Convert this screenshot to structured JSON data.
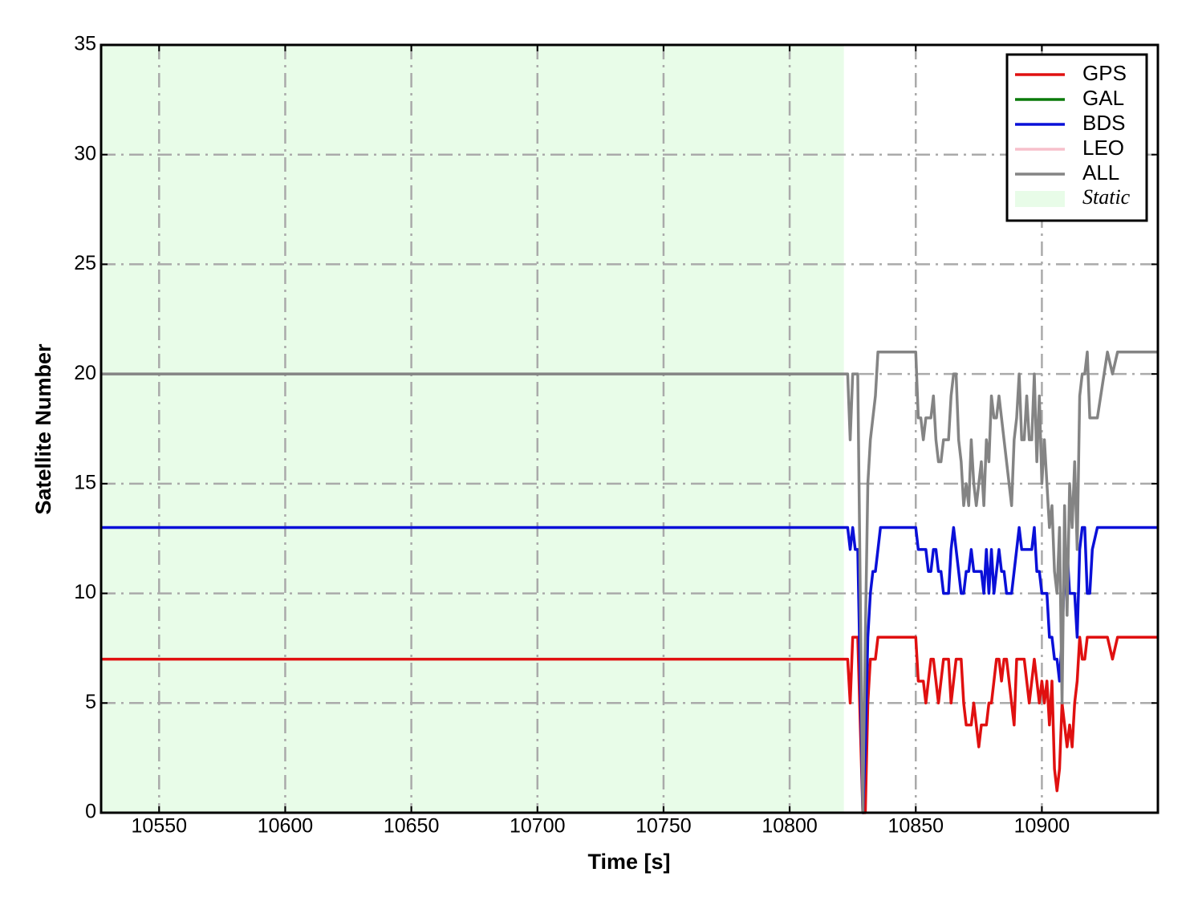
{
  "chart_data": {
    "type": "line",
    "xlabel": "Time [s]",
    "ylabel": "Satellite Number",
    "x": [
      10527,
      10821,
      10823,
      10824,
      10825,
      10826,
      10827,
      10828,
      10829,
      10830,
      10831,
      10832,
      10833,
      10834,
      10835,
      10836,
      10850,
      10851,
      10852,
      10853,
      10854,
      10855,
      10856,
      10857,
      10858,
      10859,
      10860,
      10861,
      10862,
      10863,
      10864,
      10865,
      10866,
      10867,
      10868,
      10869,
      10870,
      10871,
      10872,
      10873,
      10874,
      10875,
      10876,
      10877,
      10878,
      10879,
      10880,
      10881,
      10882,
      10883,
      10884,
      10885,
      10886,
      10887,
      10888,
      10889,
      10890,
      10891,
      10892,
      10893,
      10894,
      10895,
      10896,
      10897,
      10898,
      10899,
      10900,
      10901,
      10902,
      10903,
      10904,
      10905,
      10906,
      10907,
      10908,
      10909,
      10910,
      10911,
      10912,
      10913,
      10914,
      10915,
      10916,
      10917,
      10918,
      10919,
      10920,
      10922,
      10926,
      10928,
      10930,
      10946
    ],
    "series": [
      {
        "name": "GPS",
        "color": "#e01010",
        "values": [
          7,
          7,
          7,
          5,
          8,
          8,
          8,
          4,
          0,
          0,
          5,
          7,
          7,
          7,
          8,
          8,
          8,
          6,
          6,
          6,
          5,
          6,
          7,
          7,
          6,
          5,
          6,
          7,
          7,
          7,
          5,
          6,
          7,
          7,
          7,
          5,
          4,
          4,
          4,
          5,
          4,
          3,
          4,
          4,
          4,
          5,
          5,
          6,
          7,
          7,
          6,
          7,
          7,
          6,
          5,
          4,
          7,
          7,
          7,
          7,
          6,
          5,
          6,
          7,
          6,
          5,
          6,
          5,
          6,
          4,
          6,
          2,
          1,
          2,
          5,
          4,
          3,
          4,
          3,
          5,
          6,
          8,
          7,
          7,
          8,
          8,
          8,
          8,
          8,
          7,
          8,
          8
        ]
      },
      {
        "name": "GAL",
        "color": "#0a7a0a",
        "values": [
          null,
          null,
          null,
          null,
          null,
          null,
          null,
          null,
          null,
          null,
          null,
          null,
          null,
          null,
          null,
          null,
          null,
          null,
          null,
          null,
          null,
          null,
          null,
          null,
          null,
          null,
          null,
          null,
          null,
          null,
          null,
          null,
          null,
          null,
          null,
          null,
          null,
          null,
          null,
          null,
          null,
          null,
          null,
          null,
          null,
          null,
          null,
          null,
          null,
          null,
          null,
          null,
          null,
          null,
          null,
          null,
          null,
          null,
          null,
          null,
          null,
          null,
          null,
          null,
          null,
          null,
          null,
          null,
          null,
          null,
          null,
          null,
          null,
          null,
          null,
          null,
          null,
          null,
          null,
          null,
          null,
          null,
          null,
          null,
          null,
          null,
          null,
          null,
          null,
          null,
          null,
          null
        ]
      },
      {
        "name": "BDS",
        "color": "#0a10d8",
        "values": [
          13,
          13,
          13,
          12,
          13,
          12,
          12,
          6,
          0,
          3,
          8,
          10,
          11,
          11,
          12,
          13,
          13,
          12,
          12,
          12,
          12,
          11,
          11,
          12,
          12,
          11,
          11,
          10,
          10,
          10,
          12,
          13,
          12,
          11,
          10,
          10,
          11,
          11,
          12,
          11,
          11,
          11,
          11,
          10,
          12,
          10,
          12,
          10,
          11,
          12,
          11,
          11,
          10,
          10,
          10,
          11,
          12,
          13,
          12,
          12,
          12,
          12,
          12,
          13,
          11,
          11,
          10,
          10,
          10,
          8,
          8,
          7,
          7,
          6,
          8,
          11,
          12,
          10,
          10,
          10,
          8,
          12,
          13,
          13,
          10,
          10,
          12,
          13,
          13,
          13,
          13,
          13
        ]
      },
      {
        "name": "LEO",
        "color": "#f7c0cb",
        "values": [
          null,
          null,
          null,
          null,
          null,
          null,
          null,
          null,
          null,
          null,
          null,
          null,
          null,
          null,
          null,
          null,
          null,
          null,
          null,
          null,
          null,
          null,
          null,
          null,
          null,
          null,
          null,
          null,
          null,
          null,
          null,
          null,
          null,
          null,
          null,
          null,
          null,
          null,
          null,
          null,
          null,
          null,
          null,
          null,
          null,
          null,
          null,
          null,
          null,
          null,
          null,
          null,
          null,
          null,
          null,
          null,
          null,
          null,
          null,
          null,
          null,
          null,
          null,
          null,
          null,
          null,
          null,
          null,
          null,
          null,
          null,
          null,
          null,
          null,
          null,
          null,
          null,
          null,
          null,
          null,
          null,
          null,
          null,
          null,
          null,
          null,
          null,
          null,
          null,
          null,
          null,
          null
        ]
      },
      {
        "name": "ALL",
        "color": "#848484",
        "values": [
          20,
          20,
          20,
          17,
          20,
          20,
          20,
          10,
          0,
          8,
          15,
          17,
          18,
          19,
          21,
          21,
          21,
          18,
          18,
          17,
          18,
          18,
          18,
          19,
          17,
          16,
          16,
          17,
          17,
          17,
          19,
          20,
          20,
          17,
          16,
          14,
          15,
          14,
          17,
          15,
          14,
          15,
          16,
          14,
          17,
          16,
          19,
          18,
          18,
          19,
          18,
          17,
          16,
          15,
          14,
          17,
          18,
          20,
          17,
          17,
          19,
          17,
          17,
          20,
          16,
          19,
          15,
          17,
          15,
          13,
          14,
          11,
          10,
          13,
          5,
          14,
          9,
          15,
          13,
          16,
          12,
          19,
          20,
          20,
          21,
          18,
          18,
          18,
          21,
          20,
          21,
          21
        ]
      }
    ],
    "shaded_regions": [
      {
        "name": "Static",
        "color": "#e8fce8",
        "x": [
          10527,
          10821.5
        ]
      }
    ],
    "xlim": [
      10527,
      10946
    ],
    "xticks": [
      10550,
      10600,
      10650,
      10700,
      10750,
      10800,
      10850,
      10900
    ],
    "ylim": [
      0,
      35
    ],
    "yticks": [
      0,
      5,
      10,
      15,
      20,
      25,
      30,
      35
    ],
    "grid": true,
    "legend": "upper right"
  }
}
